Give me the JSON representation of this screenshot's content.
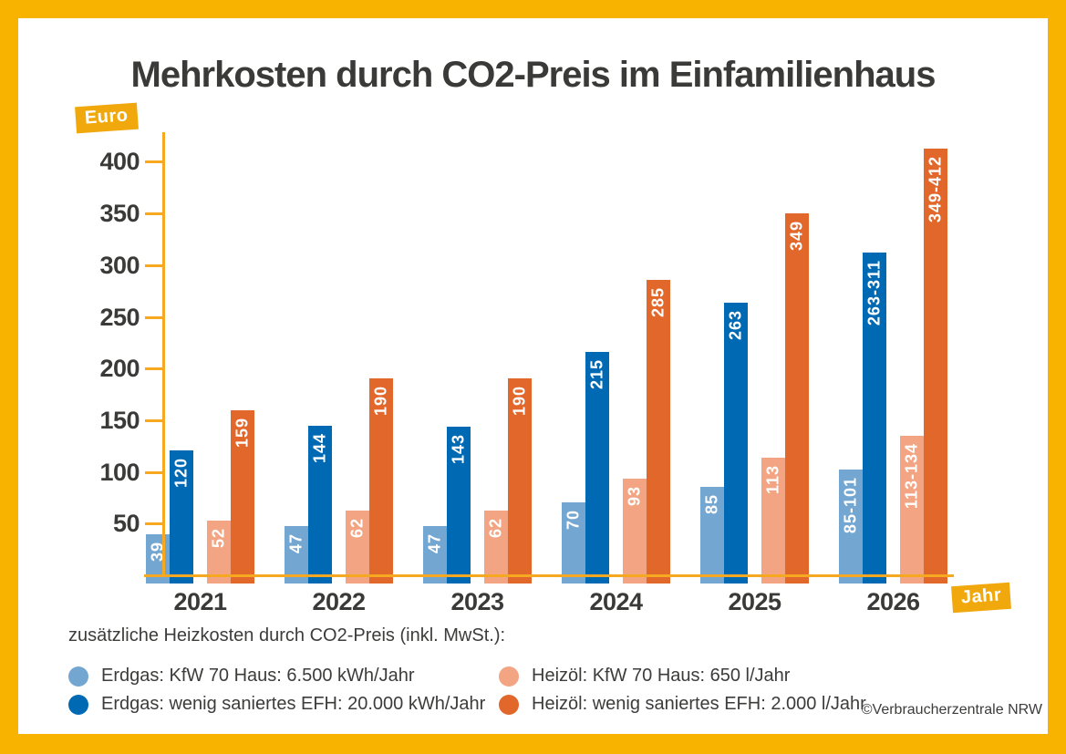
{
  "title": "Mehrkosten durch CO2-Preis im Einfamilienhaus",
  "colors": {
    "frame": "#F8B200",
    "badge": "#F0A80C",
    "axis": "#F6A821",
    "text_dark": "#3A3A38",
    "text_legend": "#3C3C3B",
    "bar_label": "#FFFFFF"
  },
  "badges": {
    "y_unit": "Euro",
    "x_unit": "Jahr"
  },
  "chart_data": {
    "type": "bar",
    "title": "Mehrkosten durch CO2-Preis im Einfamilienhaus",
    "xlabel": "Jahr",
    "ylabel": "Euro",
    "categories": [
      "2021",
      "2022",
      "2023",
      "2024",
      "2025",
      "2026"
    ],
    "series": [
      {
        "name": "Erdgas: KfW 70 Haus: 6.500 kWh/Jahr",
        "color": "#73A6D0",
        "values": [
          39,
          47,
          47,
          70,
          85,
          101
        ],
        "labels": [
          "39",
          "47",
          "47",
          "70",
          "85",
          "85-101"
        ]
      },
      {
        "name": "Erdgas: wenig saniertes EFH: 20.000 kWh/Jahr",
        "color": "#0069B4",
        "values": [
          120,
          144,
          143,
          215,
          263,
          311
        ],
        "labels": [
          "120",
          "144",
          "143",
          "215",
          "263",
          "263-311"
        ]
      },
      {
        "name": "Heizöl: KfW 70 Haus: 650 l/Jahr",
        "color": "#F2A483",
        "values": [
          52,
          62,
          62,
          93,
          113,
          134
        ],
        "labels": [
          "52",
          "62",
          "62",
          "93",
          "113",
          "113-134"
        ]
      },
      {
        "name": "Heizöl: wenig saniertes EFH: 2.000 l/Jahr",
        "color": "#E2672B",
        "values": [
          159,
          190,
          190,
          285,
          349,
          412
        ],
        "labels": [
          "159",
          "190",
          "190",
          "285",
          "349",
          "349-412"
        ]
      }
    ],
    "yticks": [
      50,
      100,
      150,
      200,
      250,
      300,
      350,
      400
    ],
    "ylim": [
      0,
      430
    ],
    "grid": false,
    "legend_header": "zusätzliche Heizkosten durch CO2-Preis (inkl. MwSt.):",
    "legend_position": "bottom"
  },
  "footer": {
    "copyright": "©Verbraucherzentrale NRW"
  }
}
